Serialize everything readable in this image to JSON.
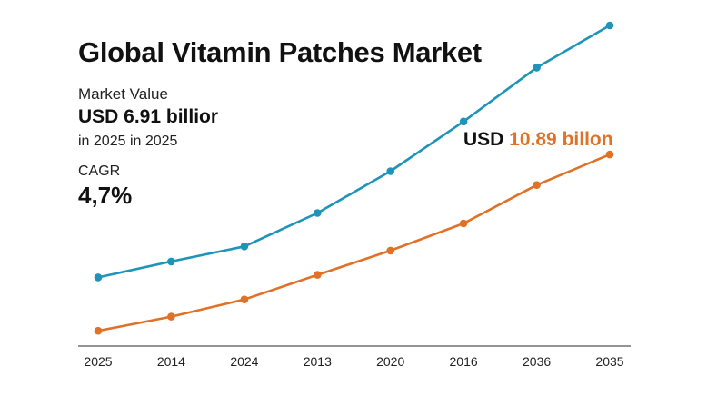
{
  "header": {
    "title": "Global Vitamin Patches Market"
  },
  "stats": {
    "market_value_label": "Market Value",
    "market_value": "USD 6.91 billior",
    "market_value_sub": "in 2025 in 2025",
    "cagr_label": "CAGR",
    "cagr_value": "4,7%"
  },
  "end_label": {
    "prefix": "USD",
    "amount": "10.89 billon"
  },
  "colors": {
    "series_upper": "#1e94b8",
    "series_lower": "#e07127",
    "axis": "#555555"
  },
  "chart_data": {
    "type": "line",
    "categories": [
      "2025",
      "2014",
      "2024",
      "2013",
      "2020",
      "2016",
      "2036",
      "2035"
    ],
    "ylim": [
      0,
      8
    ],
    "grid": false,
    "legend": "none",
    "series": [
      {
        "values": [
          1.84,
          2.22,
          2.58,
          3.38,
          4.38,
          5.57,
          6.86,
          7.87
        ]
      },
      {
        "values": [
          0.56,
          0.9,
          1.31,
          1.9,
          2.48,
          3.13,
          4.05,
          4.78
        ]
      }
    ]
  }
}
